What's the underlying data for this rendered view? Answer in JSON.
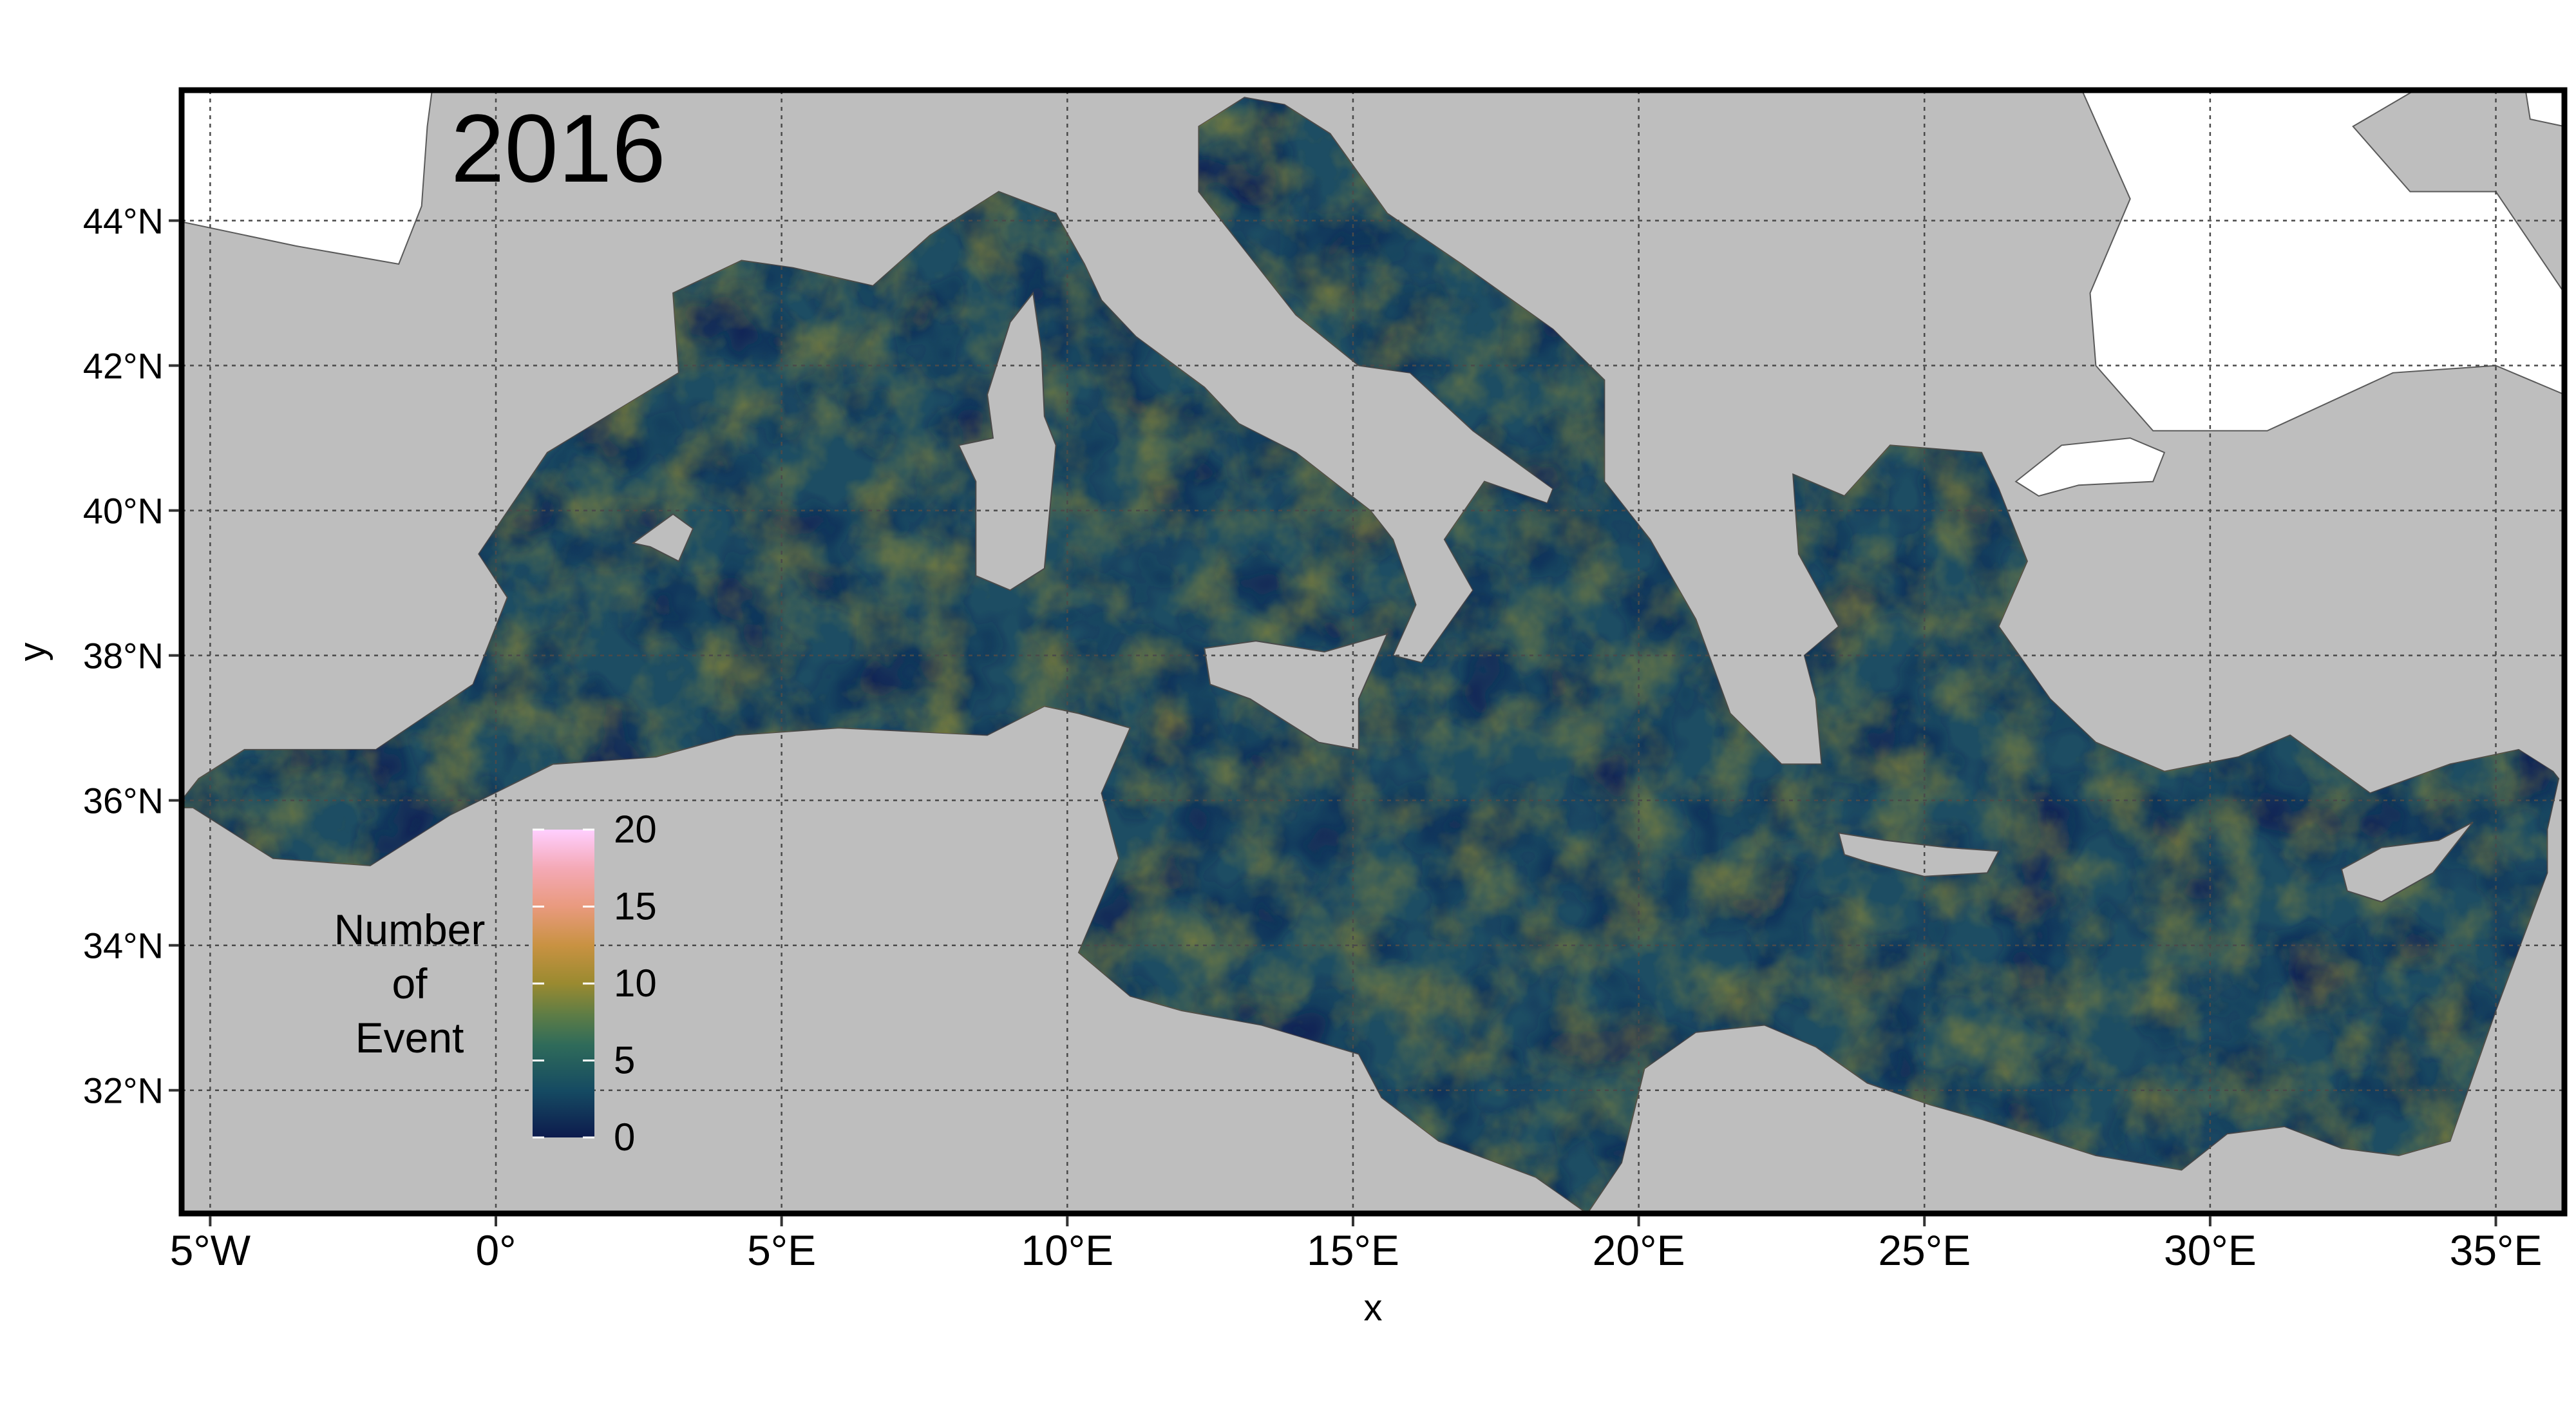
{
  "map": {
    "year_label": "2016",
    "x_axis_title": "x",
    "y_axis_title": "y",
    "x_ticks": [
      {
        "lon": -5,
        "label": "5°W"
      },
      {
        "lon": 0,
        "label": "0°"
      },
      {
        "lon": 5,
        "label": "5°E"
      },
      {
        "lon": 10,
        "label": "10°E"
      },
      {
        "lon": 15,
        "label": "15°E"
      },
      {
        "lon": 20,
        "label": "20°E"
      },
      {
        "lon": 25,
        "label": "25°E"
      },
      {
        "lon": 30,
        "label": "30°E"
      },
      {
        "lon": 35,
        "label": "35°E"
      }
    ],
    "y_ticks": [
      {
        "lat": 32,
        "label": "32°N"
      },
      {
        "lat": 34,
        "label": "34°N"
      },
      {
        "lat": 36,
        "label": "36°N"
      },
      {
        "lat": 38,
        "label": "38°N"
      },
      {
        "lat": 40,
        "label": "40°N"
      },
      {
        "lat": 42,
        "label": "42°N"
      },
      {
        "lat": 44,
        "label": "44°N"
      }
    ],
    "extent": {
      "lon": [
        -5.5,
        36.2
      ],
      "lat": [
        30.3,
        45.8
      ]
    },
    "colors": {
      "land": "#bebebe",
      "white_region": "#ffffff",
      "coast": "#5a5a5a",
      "grid": "#4a4a4a",
      "frame": "#000000"
    }
  },
  "legend": {
    "title_lines": [
      "Number",
      "of",
      "Event"
    ],
    "ticks": [
      {
        "value": 0,
        "label": "0"
      },
      {
        "value": 5,
        "label": "5"
      },
      {
        "value": 10,
        "label": "10"
      },
      {
        "value": 15,
        "label": "15"
      },
      {
        "value": 20,
        "label": "20"
      }
    ],
    "range": [
      0,
      20
    ],
    "color_stops": [
      {
        "value": 0,
        "color": "#0d1b4d"
      },
      {
        "value": 3,
        "color": "#154a62"
      },
      {
        "value": 6,
        "color": "#2f6b5a"
      },
      {
        "value": 8,
        "color": "#5f7d45"
      },
      {
        "value": 10,
        "color": "#9a8a30"
      },
      {
        "value": 12.5,
        "color": "#c99242"
      },
      {
        "value": 15,
        "color": "#e99a7e"
      },
      {
        "value": 17.5,
        "color": "#f4a9b6"
      },
      {
        "value": 20,
        "color": "#ffcfff"
      }
    ]
  }
}
